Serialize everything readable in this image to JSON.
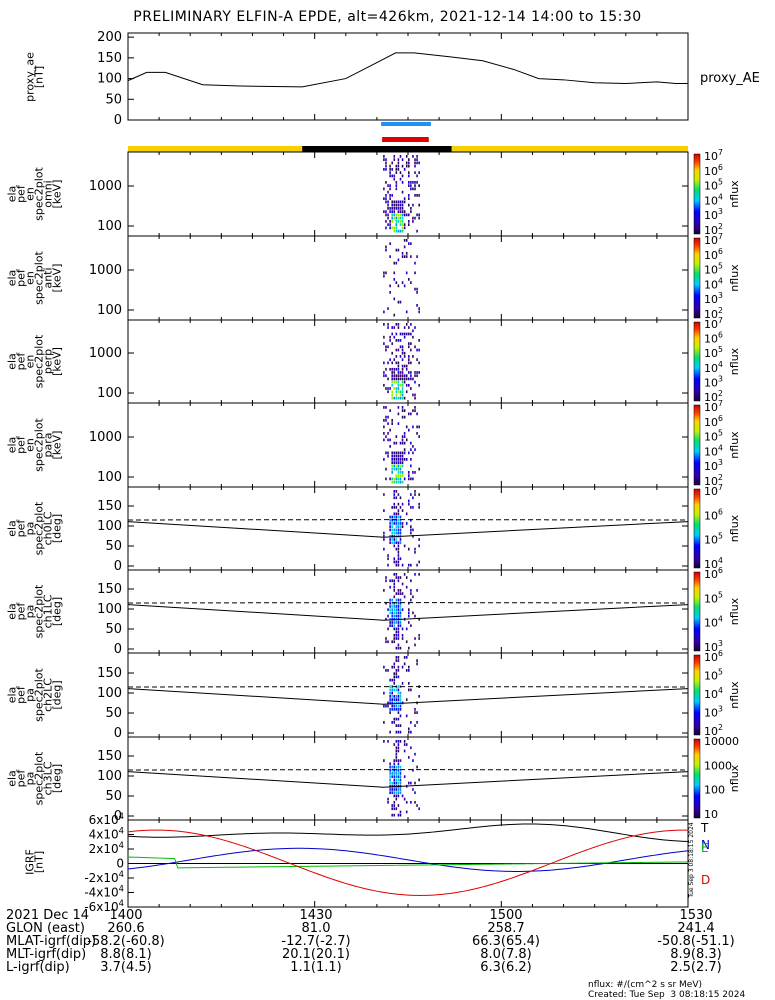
{
  "title": "PRELIMINARY ELFIN-A EPDE, alt=426km, 2021-12-14 14:00 to 15:30",
  "chart_data": {
    "type": "line",
    "time_range": [
      "14:00",
      "15:30"
    ],
    "panels": [
      {
        "id": "proxy_ae",
        "ytitle": [
          "proxy_ae",
          "[nT]"
        ],
        "yticks": [
          "0",
          "50",
          "100",
          "150",
          "200"
        ],
        "ylim": [
          0,
          210
        ],
        "series": [
          {
            "name": "proxy_AE",
            "x": [
              0,
              3,
              6,
              12,
              18,
              28,
              35,
              43,
              46,
              52,
              57,
              62,
              66,
              70,
              75,
              80,
              85,
              88,
              90
            ],
            "y": [
              95,
              115,
              115,
              85,
              82,
              80,
              100,
              162,
              162,
              152,
              143,
              122,
              100,
              97,
              90,
              88,
              92,
              88,
              88
            ]
          }
        ]
      },
      {
        "id": "omni",
        "ytitle": [
          "ela",
          "pef",
          "en",
          "spec2plot",
          "omni",
          "[keV]"
        ],
        "yticks": [
          "100",
          "1000"
        ],
        "cbar": {
          "ticks": [
            "10^2",
            "10^3",
            "10^4",
            "10^5",
            "10^6",
            "10^7"
          ],
          "label": "nflux"
        }
      },
      {
        "id": "anti",
        "ytitle": [
          "ela",
          "pef",
          "en",
          "spec2plot",
          "anti",
          "[keV]"
        ],
        "yticks": [
          "100",
          "1000"
        ],
        "cbar": {
          "ticks": [
            "10^2",
            "10^3",
            "10^4",
            "10^5",
            "10^6",
            "10^7"
          ],
          "label": "nflux"
        }
      },
      {
        "id": "perp",
        "ytitle": [
          "ela",
          "pef",
          "en",
          "spec2plot",
          "perp",
          "[keV]"
        ],
        "yticks": [
          "100",
          "1000"
        ],
        "cbar": {
          "ticks": [
            "10^2",
            "10^3",
            "10^4",
            "10^5",
            "10^6",
            "10^7"
          ],
          "label": "nflux"
        }
      },
      {
        "id": "para",
        "ytitle": [
          "ela",
          "pef",
          "en",
          "spec2plot",
          "para",
          "[keV]"
        ],
        "yticks": [
          "100",
          "1000"
        ],
        "cbar": {
          "ticks": [
            "10^2",
            "10^3",
            "10^4",
            "10^5",
            "10^6",
            "10^7"
          ],
          "label": "nflux"
        }
      },
      {
        "id": "ch0LC",
        "ytitle": [
          "ela",
          "pef",
          "pa",
          "spec2plot",
          "ch0LC",
          "[deg]"
        ],
        "yticks": [
          "0",
          "50",
          "100",
          "150"
        ],
        "cbar": {
          "ticks": [
            "10^4",
            "10^5",
            "10^6",
            "10^7"
          ],
          "label": "nflux"
        }
      },
      {
        "id": "ch1LC",
        "ytitle": [
          "ela",
          "pef",
          "pa",
          "spec2plot",
          "ch1LC",
          "[deg]"
        ],
        "yticks": [
          "0",
          "50",
          "100",
          "150"
        ],
        "cbar": {
          "ticks": [
            "10^3",
            "10^4",
            "10^5",
            "10^6"
          ],
          "label": "nflux"
        }
      },
      {
        "id": "ch2LC",
        "ytitle": [
          "ela",
          "pef",
          "pa",
          "spec2plot",
          "ch2LC",
          "[deg]"
        ],
        "yticks": [
          "0",
          "50",
          "100",
          "150"
        ],
        "cbar": {
          "ticks": [
            "10^2",
            "10^3",
            "10^4",
            "10^5",
            "10^6"
          ],
          "label": "nflux"
        }
      },
      {
        "id": "ch3LC",
        "ytitle": [
          "ela",
          "pef",
          "pa",
          "spec2plot",
          "ch3LC",
          "[deg]"
        ],
        "yticks": [
          "0",
          "50",
          "100",
          "150"
        ],
        "cbar": {
          "ticks": [
            "10",
            "100",
            "1000",
            "10000"
          ],
          "label": "nflux"
        }
      },
      {
        "id": "igrf",
        "ytitle": [
          "IGRF",
          "[nT]"
        ],
        "yticks": [
          "-6x10^4",
          "-4x10^4",
          "-2x10^4",
          "0",
          "2x10^4",
          "4x10^4",
          "6x10^4"
        ],
        "ylim": [
          -60000,
          60000
        ],
        "legend": [
          "T",
          "N",
          "E",
          "D"
        ],
        "side_note": "Tue Sep  3 08:18:15 2024"
      }
    ],
    "lc_curves": {
      "x_min_minute": 41,
      "loss_cone_deg": [
        111,
        72,
        111
      ],
      "anti_loss_cone_deg": [
        115,
        116,
        115
      ]
    },
    "flux_window_minutes": [
      41,
      47
    ]
  },
  "footer": {
    "rows": [
      [
        "2021 Dec 14",
        "1400",
        "1430",
        "1500",
        "1530"
      ],
      [
        "GLON (east)",
        "260.6",
        "81.0",
        "258.7",
        "241.4"
      ],
      [
        "MLAT-igrf(dip)",
        "-58.2(-60.8)",
        "-12.7(-2.7)",
        "66.3(65.4)",
        "-50.8(-51.1)"
      ],
      [
        "MLT-igrf(dip)",
        "8.8(8.1)",
        "20.1(20.1)",
        "8.0(7.8)",
        "8.9(8.3)"
      ],
      [
        "L-igrf(dip)",
        "3.7(4.5)",
        "1.1(1.1)",
        "6.3(6.2)",
        "2.5(2.7)"
      ]
    ],
    "nflux_units": "nflux: #/(cm^2 s sr MeV)",
    "created": "Created: Tue Sep  3 08:18:15 2024"
  },
  "colors": {
    "yellow_bar": "#f5d000",
    "black_bar": "#000000",
    "blue_bar": "#1e90ff",
    "red_bar": "#e00000",
    "T": "#000000",
    "N": "#0000cc",
    "E": "#00bb00",
    "D": "#dd0000"
  }
}
